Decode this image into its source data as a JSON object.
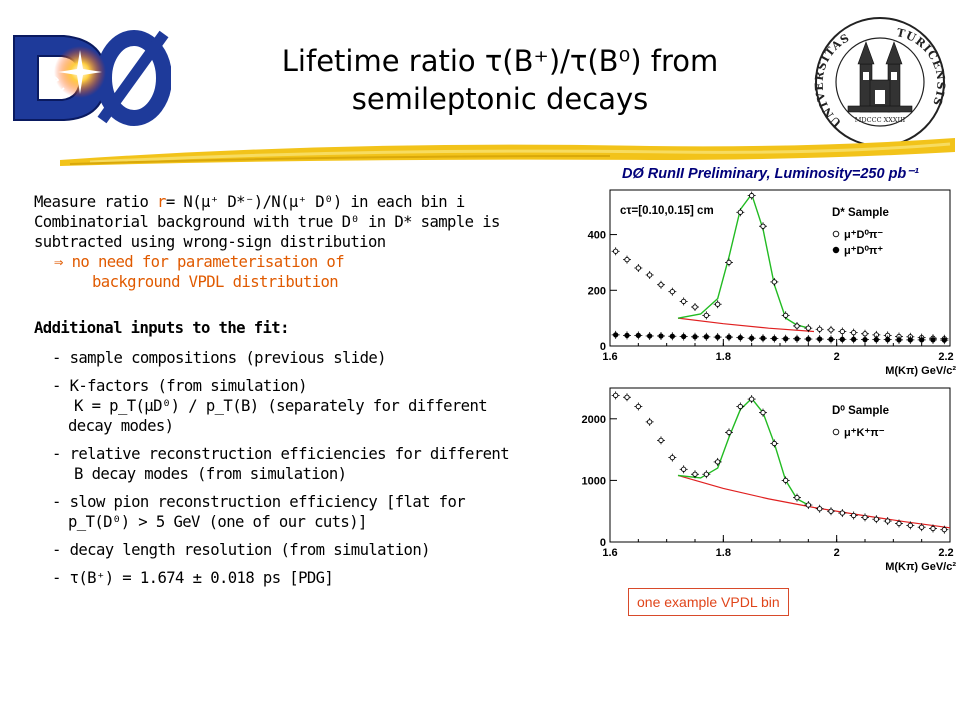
{
  "logos": {
    "d0_logo_text": "DØ",
    "seal_left": "UNIVERSITAS",
    "seal_right": "TURICENSIS",
    "seal_bottom": "MDCCC XXXIII"
  },
  "slide": {
    "title_line1": "Lifetime ratio τ(B⁺)/τ(B⁰) from",
    "title_line2": "semileptonic decays"
  },
  "body": {
    "line1_pre": "Measure ratio ",
    "line1_r": "r",
    "line1_post": "= N(μ⁺ D*⁻)/N(μ⁺ D⁰) in each bin i",
    "line2": "Combinatorial background with true D⁰ in D* sample is",
    "line3": "subtracted using wrong-sign distribution",
    "line4": "⇒ no need for parameterisation of",
    "line5": "background VPDL distribution",
    "inputs_heading": "Additional inputs to the fit:",
    "bullets": [
      "- sample compositions (previous slide)",
      "- K-factors (from simulation)",
      "K = p_T(μD⁰) / p_T(B)   (separately for different",
      "decay modes)",
      "- relative reconstruction efficiencies for different",
      "B decay modes (from simulation)",
      "- slow pion reconstruction efficiency  [flat for",
      "p_T(D⁰) > 5 GeV  (one of our cuts)]",
      "- decay length resolution (from simulation)",
      "- τ(B⁺) = 1.674 ± 0.018 ps  [PDG]"
    ]
  },
  "plot_header": "DØ RunII  Preliminary, Luminosity=250 pb⁻¹",
  "note": "one example VPDL bin",
  "colors": {
    "orange": "#e05a00",
    "fit_green": "#22bb22",
    "bkg_red": "#e02020",
    "header_blue": "#00007a"
  },
  "chart_data": [
    {
      "type": "scatter",
      "title": "D* Sample",
      "annotation": "cτ=[0.10,0.15] cm",
      "xlabel": "M(Kπ) GeV/c²",
      "ylabel": "",
      "xlim": [
        1.6,
        2.2
      ],
      "ylim": [
        0,
        560
      ],
      "xticks": [
        "1.6",
        "1.8",
        "2",
        "2.2"
      ],
      "yticks": [
        "0",
        "200",
        "400"
      ],
      "legend_position": "right",
      "series": [
        {
          "name": "μ⁺D⁰π⁻",
          "marker": "open-circle",
          "x": [
            1.61,
            1.63,
            1.65,
            1.67,
            1.69,
            1.71,
            1.73,
            1.75,
            1.77,
            1.79,
            1.81,
            1.83,
            1.85,
            1.87,
            1.89,
            1.91,
            1.93,
            1.95,
            1.97,
            1.99,
            2.01,
            2.03,
            2.05,
            2.07,
            2.09,
            2.11,
            2.13,
            2.15,
            2.17,
            2.19
          ],
          "y": [
            340,
            310,
            280,
            255,
            220,
            195,
            160,
            140,
            110,
            150,
            300,
            480,
            540,
            430,
            230,
            110,
            72,
            64,
            60,
            58,
            52,
            48,
            44,
            40,
            38,
            34,
            33,
            30,
            28,
            26
          ]
        },
        {
          "name": "μ⁺D⁰π⁺",
          "marker": "filled-circle",
          "x": [
            1.61,
            1.63,
            1.65,
            1.67,
            1.69,
            1.71,
            1.73,
            1.75,
            1.77,
            1.79,
            1.81,
            1.83,
            1.85,
            1.87,
            1.89,
            1.91,
            1.93,
            1.95,
            1.97,
            1.99,
            2.01,
            2.03,
            2.05,
            2.07,
            2.09,
            2.11,
            2.13,
            2.15,
            2.17,
            2.19
          ],
          "y": [
            40,
            38,
            38,
            36,
            36,
            35,
            34,
            33,
            33,
            32,
            32,
            30,
            28,
            28,
            27,
            26,
            26,
            25,
            25,
            24,
            24,
            24,
            23,
            23,
            23,
            22,
            22,
            22,
            22,
            21
          ]
        }
      ],
      "fit_curve": {
        "x": [
          1.72,
          1.76,
          1.79,
          1.81,
          1.83,
          1.85,
          1.87,
          1.89,
          1.91,
          1.93,
          1.95
        ],
        "y": [
          100,
          115,
          170,
          320,
          490,
          545,
          420,
          220,
          100,
          75,
          65
        ]
      },
      "background_curve": {
        "x": [
          1.72,
          1.8,
          1.88,
          1.96
        ],
        "y": [
          100,
          80,
          64,
          52
        ]
      }
    },
    {
      "type": "scatter",
      "title": "D⁰ Sample",
      "xlabel": "M(Kπ) GeV/c²",
      "ylabel": "",
      "xlim": [
        1.6,
        2.2
      ],
      "ylim": [
        0,
        2500
      ],
      "xticks": [
        "1.6",
        "1.8",
        "2",
        "2.2"
      ],
      "yticks": [
        "0",
        "1000",
        "2000"
      ],
      "legend_position": "right",
      "series": [
        {
          "name": "μ⁺K⁺π⁻",
          "marker": "open-circle",
          "x": [
            1.61,
            1.63,
            1.65,
            1.67,
            1.69,
            1.71,
            1.73,
            1.75,
            1.77,
            1.79,
            1.81,
            1.83,
            1.85,
            1.87,
            1.89,
            1.91,
            1.93,
            1.95,
            1.97,
            1.99,
            2.01,
            2.03,
            2.05,
            2.07,
            2.09,
            2.11,
            2.13,
            2.15,
            2.17,
            2.19
          ],
          "y": [
            2380,
            2350,
            2200,
            1950,
            1650,
            1370,
            1180,
            1100,
            1100,
            1300,
            1780,
            2200,
            2320,
            2100,
            1600,
            1000,
            720,
            600,
            540,
            500,
            470,
            430,
            400,
            370,
            340,
            300,
            270,
            240,
            220,
            200
          ]
        }
      ],
      "fit_curve": {
        "x": [
          1.72,
          1.76,
          1.79,
          1.81,
          1.83,
          1.85,
          1.87,
          1.89,
          1.91,
          1.93,
          1.95
        ],
        "y": [
          1080,
          1040,
          1200,
          1700,
          2150,
          2330,
          2100,
          1600,
          1000,
          700,
          600
        ]
      },
      "background_curve": {
        "x": [
          1.72,
          1.8,
          1.88,
          1.96,
          2.04,
          2.12,
          2.2
        ],
        "y": [
          1080,
          870,
          700,
          560,
          440,
          330,
          230
        ]
      }
    }
  ]
}
